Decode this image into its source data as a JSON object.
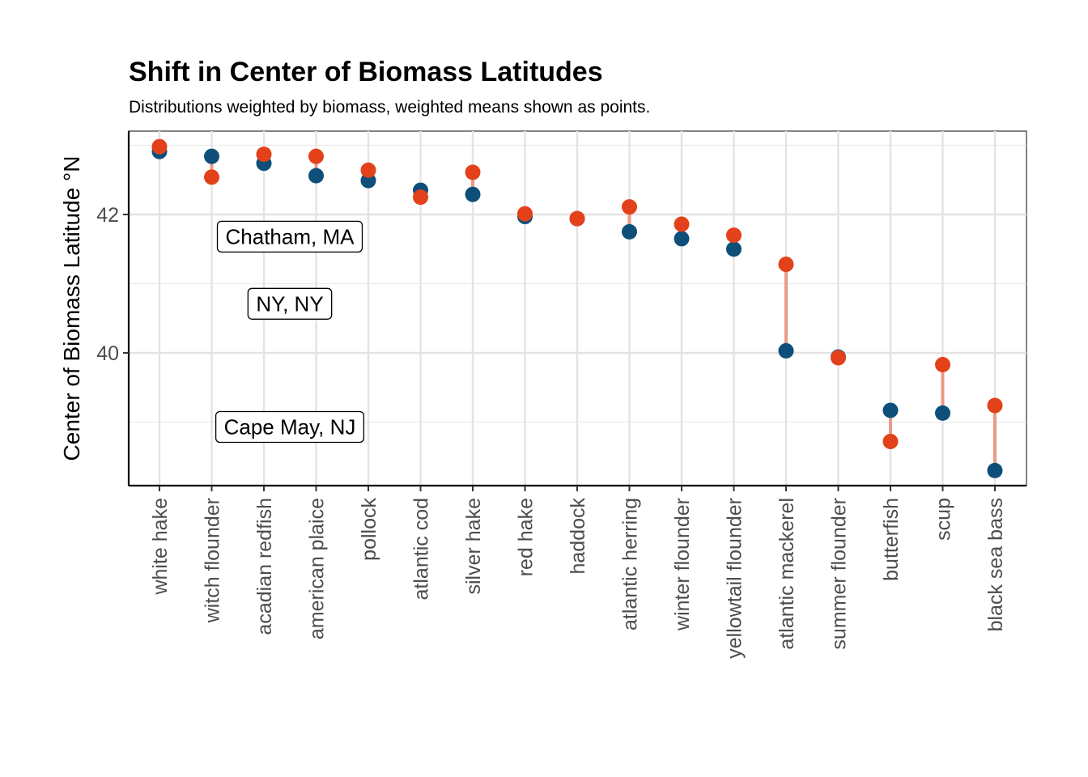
{
  "chart_data": {
    "type": "scatter",
    "title": "Shift in Center of Biomass Latitudes",
    "subtitle": "Distributions weighted by biomass, weighted means shown as points.",
    "xlabel": "",
    "ylabel": "Center of Biomass Latitude °N",
    "ylim": [
      38.1,
      43.2
    ],
    "yticks": [
      40,
      42
    ],
    "grid": true,
    "categories": [
      "white hake",
      "witch flounder",
      "acadian redfish",
      "american plaice",
      "pollock",
      "atlantic cod",
      "silver hake",
      "red hake",
      "haddock",
      "atlantic herring",
      "winter flounder",
      "yellowtail flounder",
      "atlantic mackerel",
      "summer flounder",
      "butterfish",
      "scup",
      "black sea bass"
    ],
    "series": [
      {
        "color": "#0e4f7a",
        "values": [
          42.91,
          42.84,
          42.74,
          42.56,
          42.49,
          42.35,
          42.29,
          41.97,
          41.94,
          41.75,
          41.65,
          41.5,
          40.03,
          39.94,
          39.17,
          39.13,
          38.3
        ]
      },
      {
        "color": "#e3411a",
        "values": [
          42.98,
          42.54,
          42.87,
          42.84,
          42.64,
          42.25,
          42.61,
          42.01,
          41.94,
          42.11,
          41.86,
          41.7,
          41.28,
          39.93,
          38.72,
          39.83,
          39.24
        ]
      }
    ],
    "segment_color": "#ea9a86",
    "annotations": [
      {
        "label": "Chatham, MA",
        "y": 41.68
      },
      {
        "label": "NY, NY",
        "y": 40.71
      },
      {
        "label": "Cape May, NJ",
        "y": 38.93
      }
    ]
  }
}
